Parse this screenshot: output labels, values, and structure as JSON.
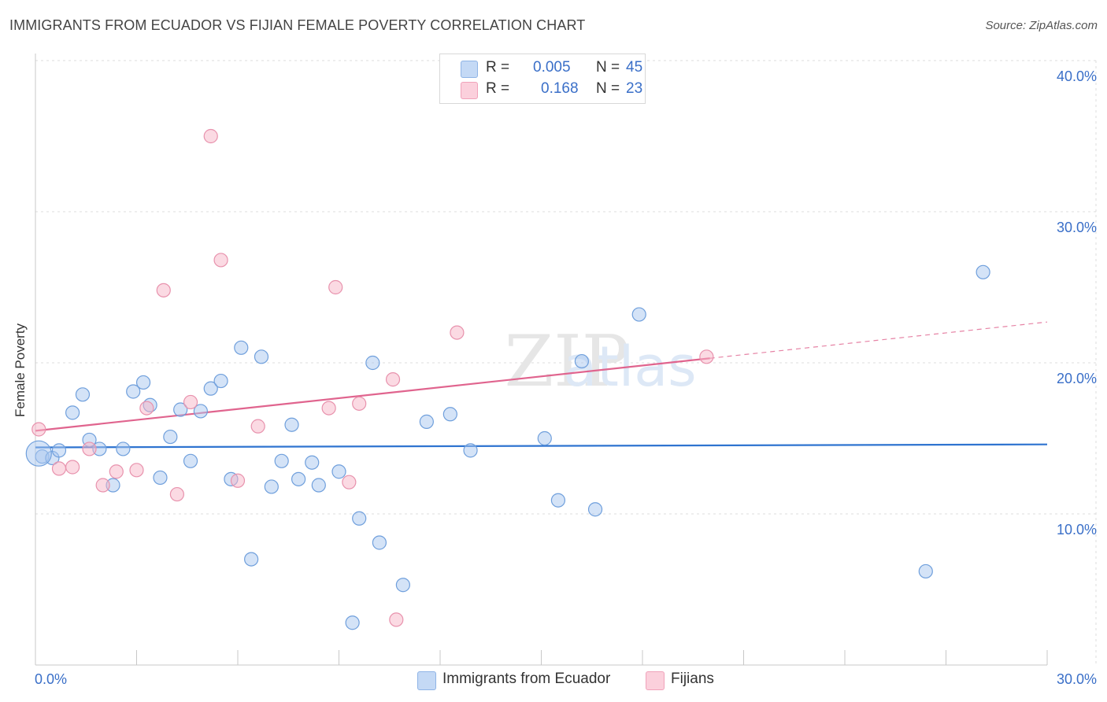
{
  "header": {
    "title": "IMMIGRANTS FROM ECUADOR VS FIJIAN FEMALE POVERTY CORRELATION CHART",
    "source": "Source: ZipAtlas.com"
  },
  "legend": {
    "rows": [
      {
        "r_label": "R =",
        "r_value": "0.005",
        "n_label": "N =",
        "n_value": "45",
        "color": "#a9c8f0"
      },
      {
        "r_label": "R =",
        "r_value": "0.168",
        "n_label": "N =",
        "n_value": "23",
        "color": "#f7b6c8"
      }
    ]
  },
  "bottom_legend": [
    {
      "label": "Immigrants from Ecuador",
      "color": "#a9c8f0"
    },
    {
      "label": "Fijians",
      "color": "#f7b6c8"
    }
  ],
  "chart_data": {
    "type": "scatter",
    "title": "IMMIGRANTS FROM ECUADOR VS FIJIAN FEMALE POVERTY CORRELATION CHART",
    "xlabel": "",
    "ylabel": "Female Poverty",
    "xlim": [
      0,
      30
    ],
    "ylim": [
      0,
      40
    ],
    "x_tick_labels": [
      "0.0%",
      "30.0%"
    ],
    "y_ticks": [
      10,
      20,
      30,
      40
    ],
    "y_tick_labels": [
      "10.0%",
      "20.0%",
      "30.0%",
      "40.0%"
    ],
    "grid": true,
    "watermark": "ZIPatlas",
    "series": [
      {
        "name": "Immigrants from Ecuador",
        "color": "#a9c8f0",
        "stroke": "#6f9fdc",
        "trend_color": "#2f74d0",
        "trend": {
          "x0": 0.0,
          "y0": 14.4,
          "x1": 30.0,
          "y1": 14.6
        },
        "points": [
          [
            0.2,
            13.8
          ],
          [
            0.5,
            13.7
          ],
          [
            0.7,
            14.2
          ],
          [
            1.1,
            16.7
          ],
          [
            1.4,
            17.9
          ],
          [
            1.6,
            14.9
          ],
          [
            1.9,
            14.3
          ],
          [
            2.3,
            11.9
          ],
          [
            2.6,
            14.3
          ],
          [
            2.9,
            18.1
          ],
          [
            3.2,
            18.7
          ],
          [
            3.4,
            17.2
          ],
          [
            3.7,
            12.4
          ],
          [
            4.0,
            15.1
          ],
          [
            4.3,
            16.9
          ],
          [
            4.6,
            13.5
          ],
          [
            4.9,
            16.8
          ],
          [
            5.2,
            18.3
          ],
          [
            5.5,
            18.8
          ],
          [
            5.8,
            12.3
          ],
          [
            6.1,
            21.0
          ],
          [
            6.4,
            7.0
          ],
          [
            6.7,
            20.4
          ],
          [
            7.0,
            11.8
          ],
          [
            7.3,
            13.5
          ],
          [
            7.6,
            15.9
          ],
          [
            7.8,
            12.3
          ],
          [
            8.2,
            13.4
          ],
          [
            8.4,
            11.9
          ],
          [
            9.0,
            12.8
          ],
          [
            9.4,
            2.8
          ],
          [
            9.6,
            9.7
          ],
          [
            10.0,
            20.0
          ],
          [
            10.2,
            8.1
          ],
          [
            10.9,
            5.3
          ],
          [
            11.6,
            16.1
          ],
          [
            12.3,
            16.6
          ],
          [
            12.9,
            14.2
          ],
          [
            15.1,
            15.0
          ],
          [
            15.5,
            10.9
          ],
          [
            16.2,
            20.1
          ],
          [
            16.6,
            10.3
          ],
          [
            17.9,
            23.2
          ],
          [
            26.4,
            6.2
          ],
          [
            28.1,
            26.0
          ]
        ]
      },
      {
        "name": "Fijians",
        "color": "#f7b6c8",
        "stroke": "#e892ad",
        "trend_color": "#e0648e",
        "trend": {
          "x0": 0.0,
          "y0": 15.5,
          "x1": 20.0,
          "y1": 20.3
        },
        "trend_dashed": {
          "x0": 20.0,
          "y0": 20.3,
          "x1": 30.0,
          "y1": 22.7
        },
        "points": [
          [
            0.1,
            15.6
          ],
          [
            0.7,
            13.0
          ],
          [
            1.1,
            13.1
          ],
          [
            1.6,
            14.3
          ],
          [
            2.0,
            11.9
          ],
          [
            2.4,
            12.8
          ],
          [
            3.0,
            12.9
          ],
          [
            3.3,
            17.0
          ],
          [
            3.8,
            24.8
          ],
          [
            4.2,
            11.3
          ],
          [
            4.6,
            17.4
          ],
          [
            5.2,
            35.0
          ],
          [
            5.5,
            26.8
          ],
          [
            6.0,
            12.2
          ],
          [
            6.6,
            15.8
          ],
          [
            8.7,
            17.0
          ],
          [
            8.9,
            25.0
          ],
          [
            9.3,
            12.1
          ],
          [
            9.6,
            17.3
          ],
          [
            10.6,
            18.9
          ],
          [
            10.7,
            3.0
          ],
          [
            12.5,
            22.0
          ],
          [
            19.9,
            20.4
          ]
        ]
      }
    ]
  }
}
